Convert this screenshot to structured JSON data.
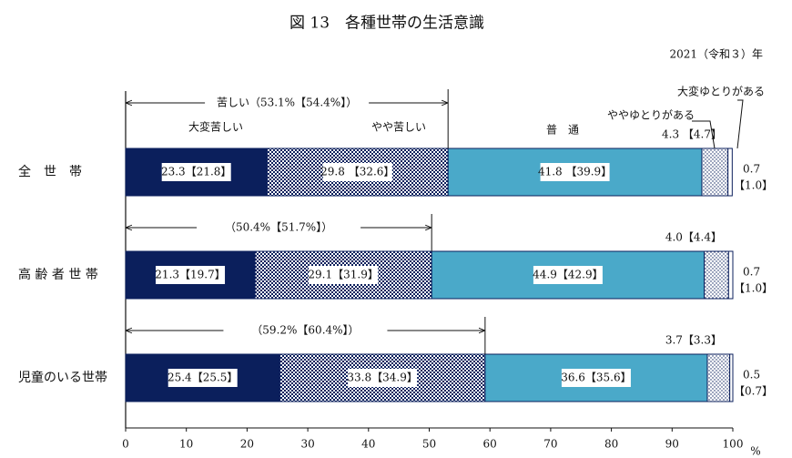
{
  "chart_data": {
    "type": "stacked-bar-horizontal",
    "title": "図 13　各種世帯の生活意識",
    "subtitle": "2021（令和３）年",
    "x_unit": "%",
    "categories": [
      "全　世　帯",
      "高 齢 者 世 帯",
      "児童のいる世帯"
    ],
    "xlim": [
      0,
      100
    ],
    "xticks": [
      0,
      10,
      20,
      30,
      40,
      50,
      60,
      70,
      80,
      90,
      100
    ],
    "series": [
      {
        "name": "大変苦しい",
        "color": "#0b1f5c",
        "values": [
          23.3,
          21.3,
          25.4
        ],
        "value_labels": [
          "23.3【21.8】",
          "21.3【19.7】",
          "25.4【25.5】"
        ]
      },
      {
        "name": "やや苦しい",
        "color": "#0b1f5c",
        "pattern": "check",
        "values": [
          29.8,
          29.1,
          33.8
        ],
        "value_labels": [
          "29.8 【32.6】",
          "29.1【31.9】",
          "33.8【34.9】"
        ]
      },
      {
        "name": "普　通",
        "color": "#4aa9c9",
        "values": [
          41.8,
          44.9,
          36.6
        ],
        "value_labels": [
          "41.8 【39.9】",
          "44.9【42.9】",
          "36.6【35.6】"
        ]
      },
      {
        "name": "ややゆとりがある",
        "color": "#0b1f5c",
        "pattern": "dots",
        "values": [
          4.3,
          4.0,
          3.7
        ],
        "value_labels": [
          "4.3 【4.7】",
          "4.0【4.4】",
          "3.7【3.3】"
        ]
      },
      {
        "name": "大変ゆとりがある",
        "color": "#ffffff",
        "values": [
          0.7,
          0.7,
          0.5
        ],
        "value_labels": [
          [
            "0.7",
            "【1.0】"
          ],
          [
            "0.7",
            "【1.0】"
          ],
          [
            "0.5",
            "【0.7】"
          ]
        ]
      }
    ],
    "annotations": [
      {
        "text": "苦しい（53.1%【54.4%】）",
        "value": 53.1
      },
      {
        "text": "（50.4%【51.7%】）",
        "value": 50.4
      },
      {
        "text": "（59.2%【60.4%】）",
        "value": 59.2
      }
    ]
  }
}
